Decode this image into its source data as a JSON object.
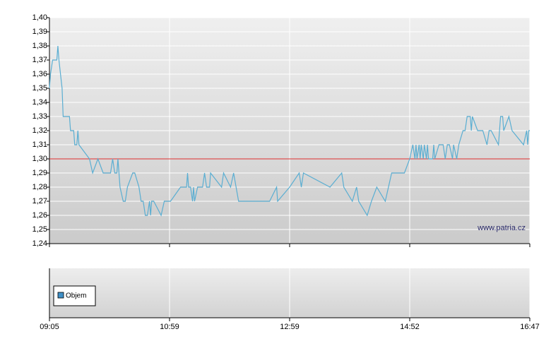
{
  "chart_data": {
    "type": "line",
    "annotation": "www.patria.cz",
    "color": "#5aaed2",
    "reference_line": 1.3,
    "reference_color": "#e03030",
    "grid": true,
    "xlim": [
      "09:05",
      "16:47"
    ],
    "xticks": [
      "09:05",
      "10:59",
      "12:59",
      "14:52",
      "16:47"
    ],
    "ylim": [
      1.24,
      1.4
    ],
    "yticks": [
      {
        "value": 1.24,
        "label": "1,24"
      },
      {
        "value": 1.25,
        "label": "1,25"
      },
      {
        "value": 1.26,
        "label": "1,26"
      },
      {
        "value": 1.27,
        "label": "1,27"
      },
      {
        "value": 1.28,
        "label": "1,28"
      },
      {
        "value": 1.29,
        "label": "1,29"
      },
      {
        "value": 1.3,
        "label": "1,30"
      },
      {
        "value": 1.31,
        "label": "1,31"
      },
      {
        "value": 1.32,
        "label": "1,32"
      },
      {
        "value": 1.33,
        "label": "1,33"
      },
      {
        "value": 1.34,
        "label": "1,34"
      },
      {
        "value": 1.35,
        "label": "1,35"
      },
      {
        "value": 1.36,
        "label": "1,36"
      },
      {
        "value": 1.37,
        "label": "1,37"
      },
      {
        "value": 1.38,
        "label": "1,38"
      },
      {
        "value": 1.39,
        "label": "1,39"
      },
      {
        "value": 1.4,
        "label": "1,40"
      }
    ],
    "x": [
      "09:05",
      "09:06",
      "09:08",
      "09:12",
      "09:13",
      "09:14",
      "09:17",
      "09:18",
      "09:24",
      "09:25",
      "09:28",
      "09:29",
      "09:31",
      "09:32",
      "09:33",
      "09:43",
      "09:46",
      "09:51",
      "09:56",
      "10:03",
      "10:05",
      "10:07",
      "10:09",
      "10:10",
      "10:12",
      "10:15",
      "10:17",
      "10:19",
      "10:24",
      "10:26",
      "10:30",
      "10:32",
      "10:34",
      "10:36",
      "10:38",
      "10:40",
      "10:41",
      "10:42",
      "10:44",
      "10:51",
      "10:54",
      "11:00",
      "11:10",
      "11:16",
      "11:17",
      "11:18",
      "11:20",
      "11:22",
      "11:23",
      "11:24",
      "11:27",
      "11:28",
      "11:32",
      "11:34",
      "11:36",
      "11:39",
      "11:40",
      "11:51",
      "11:53",
      "12:00",
      "12:03",
      "12:08",
      "12:39",
      "12:46",
      "12:47",
      "12:59",
      "13:08",
      "13:10",
      "13:12",
      "13:37",
      "13:48",
      "13:50",
      "13:58",
      "14:02",
      "14:04",
      "14:12",
      "14:16",
      "14:21",
      "14:29",
      "14:35",
      "14:47",
      "14:52",
      "14:55",
      "14:57",
      "14:58",
      "14:59",
      "15:01",
      "15:02",
      "15:03",
      "15:05",
      "15:06",
      "15:08",
      "15:09",
      "15:10",
      "15:14",
      "15:15",
      "15:16",
      "15:20",
      "15:24",
      "15:26",
      "15:28",
      "15:30",
      "15:33",
      "15:34",
      "15:37",
      "15:39",
      "15:43",
      "15:45",
      "15:47",
      "15:50",
      "15:51",
      "15:52",
      "15:57",
      "16:02",
      "16:06",
      "16:08",
      "16:10",
      "16:17",
      "16:19",
      "16:21",
      "16:22",
      "16:27",
      "16:30",
      "16:41",
      "16:44",
      "16:45",
      "16:46",
      "16:47"
    ],
    "values": [
      1.35,
      1.36,
      1.37,
      1.37,
      1.38,
      1.37,
      1.35,
      1.33,
      1.33,
      1.32,
      1.32,
      1.31,
      1.31,
      1.32,
      1.31,
      1.3,
      1.29,
      1.3,
      1.29,
      1.29,
      1.3,
      1.29,
      1.29,
      1.3,
      1.28,
      1.27,
      1.27,
      1.28,
      1.29,
      1.29,
      1.28,
      1.27,
      1.27,
      1.26,
      1.26,
      1.27,
      1.26,
      1.27,
      1.27,
      1.26,
      1.27,
      1.27,
      1.28,
      1.28,
      1.29,
      1.28,
      1.28,
      1.27,
      1.28,
      1.27,
      1.28,
      1.28,
      1.28,
      1.29,
      1.28,
      1.28,
      1.29,
      1.28,
      1.29,
      1.28,
      1.29,
      1.27,
      1.27,
      1.28,
      1.27,
      1.28,
      1.29,
      1.28,
      1.29,
      1.28,
      1.29,
      1.28,
      1.27,
      1.28,
      1.27,
      1.26,
      1.27,
      1.28,
      1.27,
      1.29,
      1.29,
      1.3,
      1.31,
      1.3,
      1.31,
      1.3,
      1.31,
      1.3,
      1.31,
      1.3,
      1.31,
      1.3,
      1.31,
      1.3,
      1.3,
      1.31,
      1.3,
      1.31,
      1.31,
      1.3,
      1.31,
      1.31,
      1.3,
      1.31,
      1.3,
      1.31,
      1.32,
      1.32,
      1.33,
      1.33,
      1.32,
      1.33,
      1.32,
      1.32,
      1.31,
      1.32,
      1.32,
      1.31,
      1.33,
      1.33,
      1.32,
      1.33,
      1.32,
      1.31,
      1.32,
      1.31,
      1.32,
      1.32
    ],
    "volume_panel": {
      "legend": "Objem",
      "color": "#3f8fc6"
    }
  }
}
